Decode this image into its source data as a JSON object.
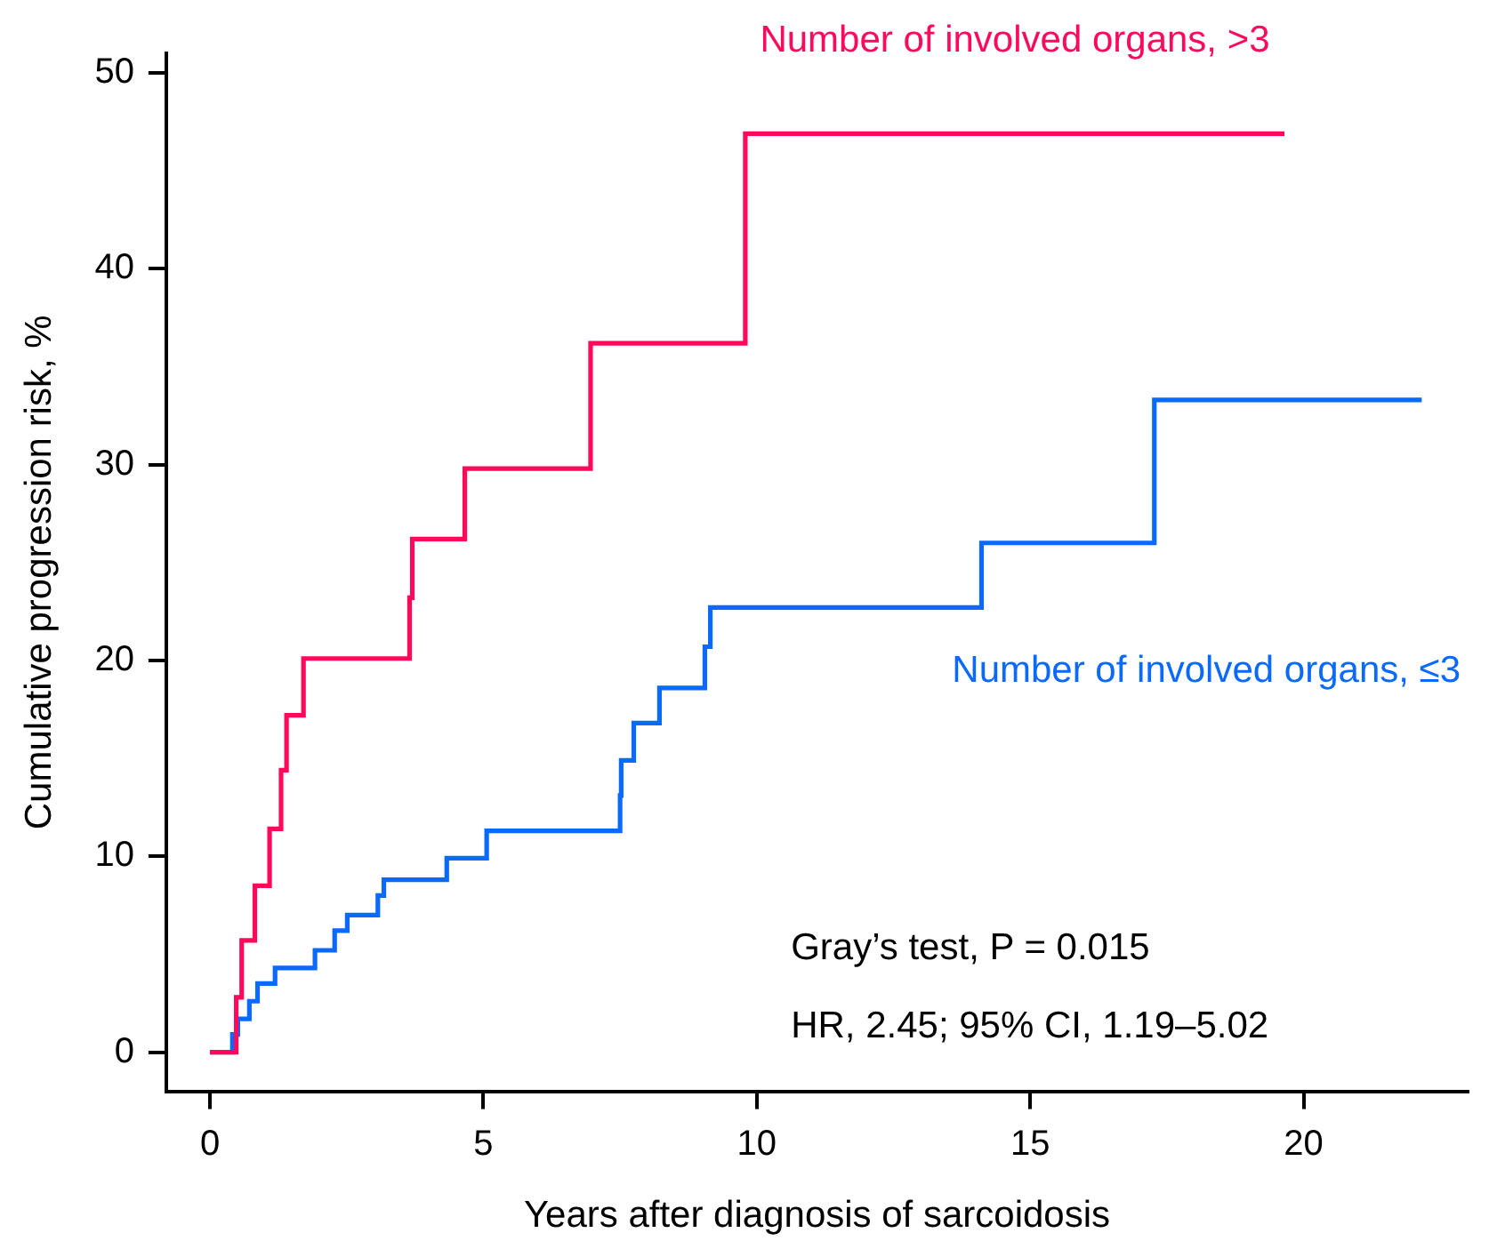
{
  "chart_data": {
    "type": "step",
    "xlabel": "Years after diagnosis of sarcoidosis",
    "ylabel": "Cumulative progression risk, %",
    "xlim": [
      -0.8,
      23
    ],
    "ylim": [
      -2,
      51
    ],
    "xticks": [
      0,
      5,
      10,
      15,
      20
    ],
    "yticks": [
      0,
      10,
      20,
      30,
      40,
      50
    ],
    "grid": false,
    "legend": false,
    "marker": "none",
    "line_style": "solid",
    "series": [
      {
        "name": "Number of involved organs, >3",
        "color": "#ff0a5a",
        "x": [
          0,
          0.48,
          0.58,
          0.82,
          1.09,
          1.3,
          1.4,
          1.71,
          3.65,
          3.7,
          4.66,
          6.96,
          9.79,
          19.65
        ],
        "values": [
          0,
          2.8,
          5.7,
          8.5,
          11.4,
          14.4,
          17.2,
          20.1,
          23.2,
          26.2,
          29.8,
          36.2,
          46.9,
          46.9
        ]
      },
      {
        "name": "Number of involved organs, ≤3",
        "color": "#0a6aff",
        "x": [
          0,
          0.41,
          0.51,
          0.72,
          0.87,
          1.19,
          1.92,
          2.28,
          2.51,
          3.07,
          3.18,
          4.33,
          5.06,
          7.5,
          7.52,
          7.75,
          8.22,
          9.05,
          9.15,
          14.11,
          17.27,
          22.16
        ],
        "values": [
          0,
          0.9,
          1.7,
          2.6,
          3.5,
          4.3,
          5.2,
          6.2,
          7.0,
          8.0,
          8.8,
          9.9,
          11.3,
          13.1,
          14.9,
          16.8,
          18.6,
          20.7,
          22.7,
          26.0,
          33.3,
          33.3
        ]
      }
    ],
    "annotations": [
      "Gray’s test, P = 0.015",
      "HR, 2.45; 95% CI, 1.19–5.02"
    ]
  }
}
